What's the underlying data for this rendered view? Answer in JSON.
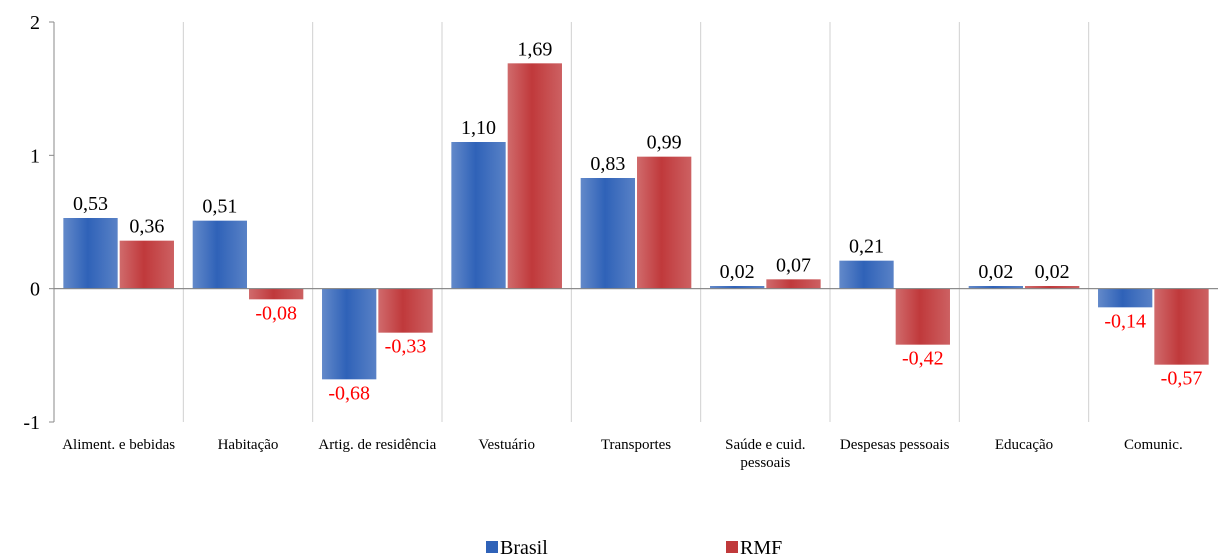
{
  "chart_data": {
    "type": "bar",
    "categories": [
      "Aliment. e bebidas",
      "Habitação",
      "Artig. de residência",
      "Vestuário",
      "Transportes",
      "Saúde e cuid. pessoais",
      "Despesas pessoais",
      "Educação",
      "Comunic."
    ],
    "series": [
      {
        "name": "Brasil",
        "color": "#2f62b8",
        "values": [
          0.53,
          0.51,
          -0.68,
          1.1,
          0.83,
          0.02,
          0.21,
          0.02,
          -0.14
        ],
        "value_labels": [
          "0,53",
          "0,51",
          "-0,68",
          "1,10",
          "0,83",
          "0,02",
          "0,21",
          "0,02",
          "-0,14"
        ]
      },
      {
        "name": "RMF",
        "color": "#c0393b",
        "values": [
          0.36,
          -0.08,
          -0.33,
          1.69,
          0.99,
          0.07,
          -0.42,
          0.02,
          -0.57
        ],
        "value_labels": [
          "0,36",
          "-0,08",
          "-0,33",
          "1,69",
          "0,99",
          "0,07",
          "-0,42",
          "0,02",
          "-0,57"
        ]
      }
    ],
    "ylim": [
      -1,
      2
    ],
    "yticks": [
      -1,
      0,
      1,
      2
    ],
    "grid": "vertical",
    "negative_label_color": "#ff0000",
    "legend": "bottom"
  }
}
